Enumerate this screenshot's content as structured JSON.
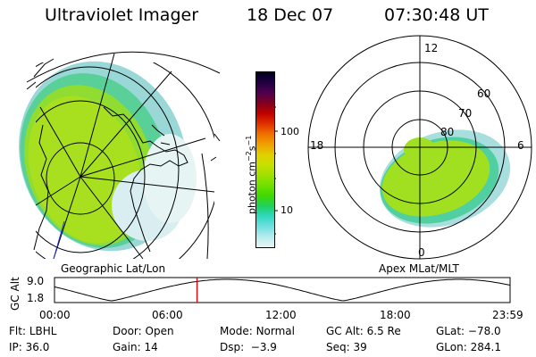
{
  "header": {
    "title": "Ultraviolet Imager",
    "date": "18 Dec 07",
    "time": "07:30:48 UT"
  },
  "left_panel": {
    "label": "Geographic Lat/Lon"
  },
  "right_panel": {
    "label": "Apex MLat/MLT",
    "mlt_labels": {
      "top": "12",
      "left": "18",
      "right": "6",
      "bottom": "0"
    },
    "lat_labels": [
      "60",
      "70",
      "80"
    ]
  },
  "colorbar": {
    "unit_label": "photon cm",
    "unit_exp1": "−2",
    "unit_s": "s",
    "unit_exp2": "−1",
    "tick_labels": [
      "100",
      "10"
    ],
    "colors": [
      "#000020",
      "#200040",
      "#500050",
      "#800020",
      "#c00000",
      "#e03000",
      "#f07000",
      "#f0a000",
      "#e0d000",
      "#c8e000",
      "#a0e000",
      "#70e000",
      "#40d800",
      "#20d060",
      "#30d8c0",
      "#70e0e0",
      "#b8ecec",
      "#e8f4f4"
    ]
  },
  "altitude_plot": {
    "ylabel": "GC Alt",
    "yticks": [
      "9.0",
      "1.8"
    ],
    "xticks": [
      "00:00",
      "06:00",
      "12:00",
      "18:00",
      "23:59"
    ],
    "current_time_hours": 7.51,
    "marker_color": "#d01010"
  },
  "info_rows": [
    [
      {
        "label": "Flt:",
        "value": "LBHL"
      },
      {
        "label": "Door:",
        "value": "Open"
      },
      {
        "label": "Mode:",
        "value": "Normal"
      },
      {
        "label": "GC Alt:",
        "value": "6.5 Re"
      },
      {
        "label": "GLat:",
        "value": "−78.0"
      }
    ],
    [
      {
        "label": "IP:",
        "value": "36.0"
      },
      {
        "label": "Gain:",
        "value": "14"
      },
      {
        "label": "Dsp:",
        "value": "  −3.9"
      },
      {
        "label": "Seq:",
        "value": "39"
      },
      {
        "label": "GLon:",
        "value": "284.1"
      }
    ]
  ]
}
